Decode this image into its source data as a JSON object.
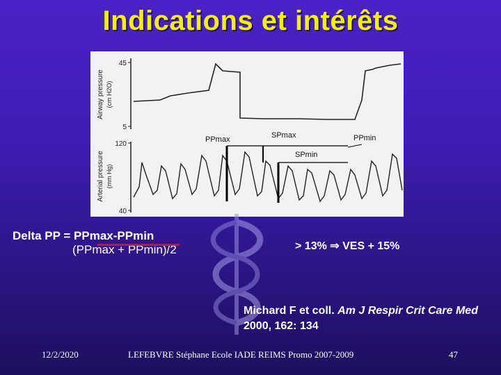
{
  "slide": {
    "title": "Indications et intérêts",
    "figure": {
      "airway_axis_label": "Airway pressure",
      "airway_axis_unit": "(cm H2O)",
      "airway_ticks": [
        "45",
        "5"
      ],
      "arterial_axis_label": "Arterial pressure",
      "arterial_axis_unit": "(mm Hg)",
      "arterial_ticks": [
        "120",
        "40"
      ],
      "labels": {
        "ppmax": "PPmax",
        "spmax": "SPmax",
        "ppmin": "PPmin",
        "spmin": "SPmin"
      }
    },
    "formula": {
      "line1": "Delta PP  =  PPmax-PPmin",
      "line2": "(PPmax + PPmin)/2"
    },
    "result": "> 13%  ⇒  VES + 15%",
    "reference": {
      "authors": "Michard F et coll. ",
      "journal": "Am J Respir Crit Care Med",
      "citation": " 2000, 162: 134"
    },
    "footer": {
      "date": "12/2/2020",
      "author": "LEFEBVRE Stéphane Ecole IADE REIMS Promo 2007-2009",
      "page": "47"
    },
    "colors": {
      "title": "#f5f000",
      "fraction_bar": "#d01030"
    }
  }
}
